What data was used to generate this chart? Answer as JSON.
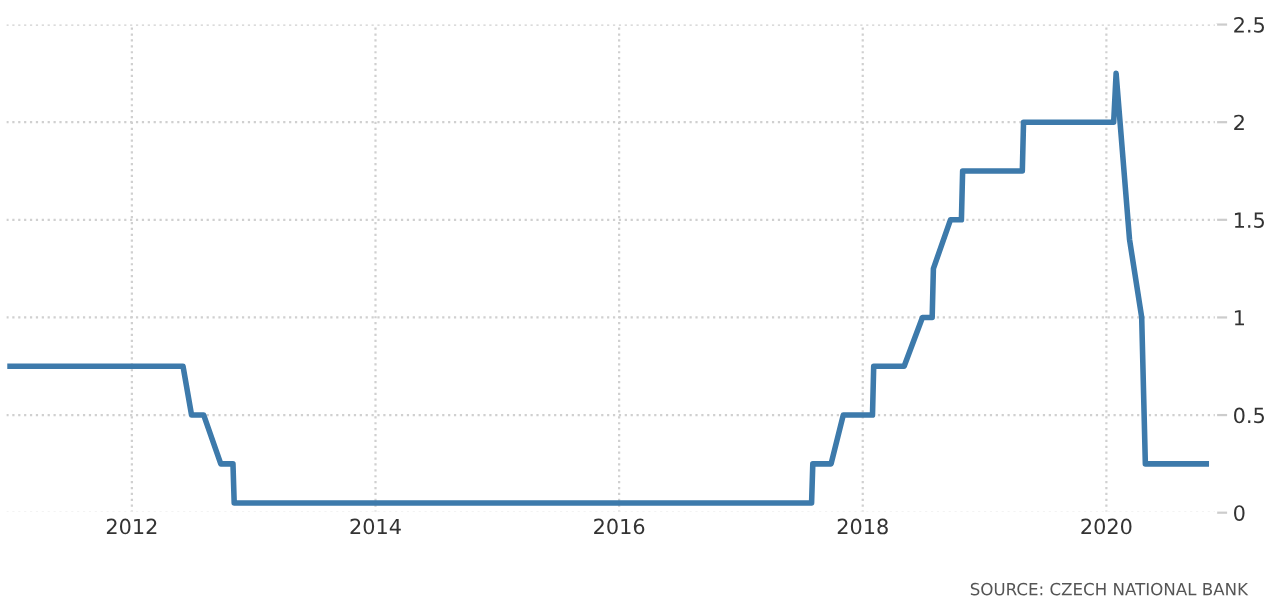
{
  "chart_data": {
    "type": "line",
    "x": [
      2011.0,
      2012.42,
      2012.49,
      2012.59,
      2012.73,
      2012.83,
      2012.84,
      2017.58,
      2017.59,
      2017.74,
      2017.84,
      2018.08,
      2018.09,
      2018.34,
      2018.49,
      2018.57,
      2018.58,
      2018.72,
      2018.81,
      2018.82,
      2019.31,
      2019.32,
      2020.06,
      2020.08,
      2020.19,
      2020.29,
      2020.32,
      2020.82
    ],
    "series": [
      {
        "color": "#3d7aab",
        "values": [
          0.75,
          0.75,
          0.5,
          0.5,
          0.25,
          0.25,
          0.05,
          0.05,
          0.25,
          0.25,
          0.5,
          0.5,
          0.75,
          0.75,
          1.0,
          1.0,
          1.25,
          1.5,
          1.5,
          1.75,
          1.75,
          2.0,
          2.0,
          2.25,
          1.4,
          1.0,
          0.25,
          0.25
        ]
      }
    ],
    "xlim": [
      2010.97,
      2020.9
    ],
    "xticks": [
      2012,
      2014,
      2016,
      2018,
      2020
    ],
    "ylim": [
      0,
      2.5
    ],
    "yticks": [
      0,
      0.5,
      1,
      1.5,
      2,
      2.5
    ],
    "grid": true,
    "marker": "none",
    "line_style": "solid",
    "annotations": [
      "SOURCE: CZECH NATIONAL BANK"
    ]
  }
}
